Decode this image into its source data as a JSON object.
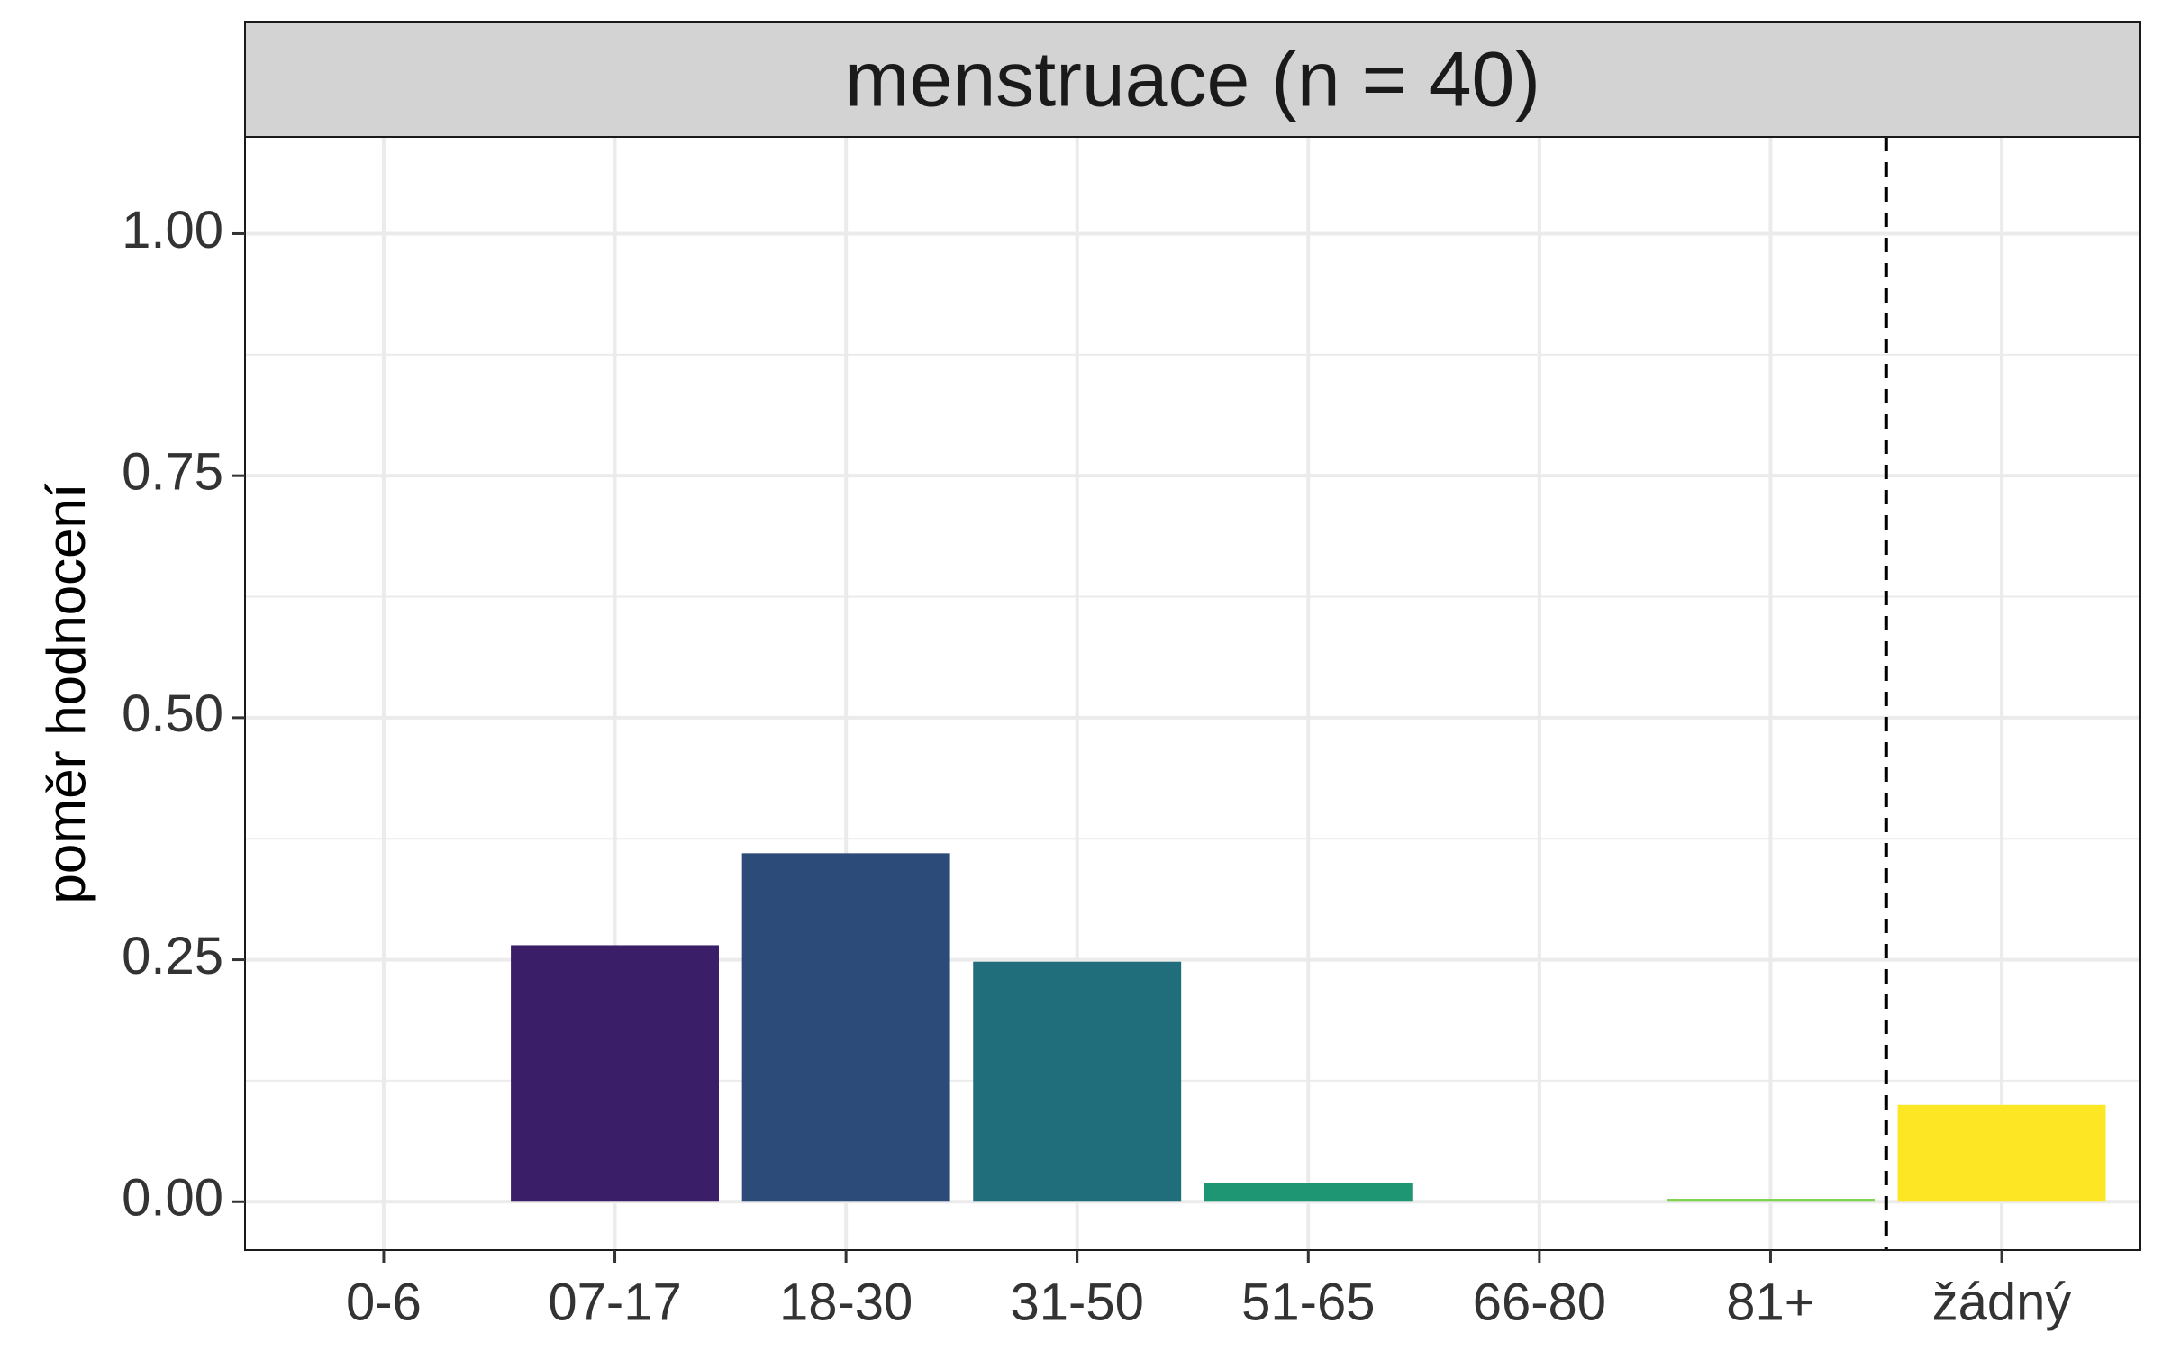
{
  "chart_data": {
    "type": "bar",
    "facet_title": "menstruace (n = 40)",
    "xlabel": "",
    "ylabel": "poměr hodnocení",
    "categories": [
      "0-6",
      "07-17",
      "18-30",
      "31-50",
      "51-65",
      "66-80",
      "81+",
      "žádný"
    ],
    "values": [
      0.0,
      0.265,
      0.36,
      0.248,
      0.019,
      0.0,
      0.003,
      0.1
    ],
    "colors": [
      "#440154",
      "#3A1F68",
      "#2C4B79",
      "#206E7B",
      "#1F9673",
      "#5EC962",
      "#7CD24A",
      "#FDE725"
    ],
    "ylim": [
      -0.05,
      1.1
    ],
    "yticks": [
      0.0,
      0.25,
      0.5,
      0.75,
      1.0
    ],
    "ytick_labels": [
      "0.00",
      "0.25",
      "0.50",
      "0.75",
      "1.00"
    ],
    "yminor": [
      0.125,
      0.375,
      0.625,
      0.875,
      1.125
    ],
    "grid": true,
    "reference_line": {
      "between": [
        "81+",
        "žádný"
      ],
      "style": "dashed",
      "color": "#000000"
    }
  }
}
